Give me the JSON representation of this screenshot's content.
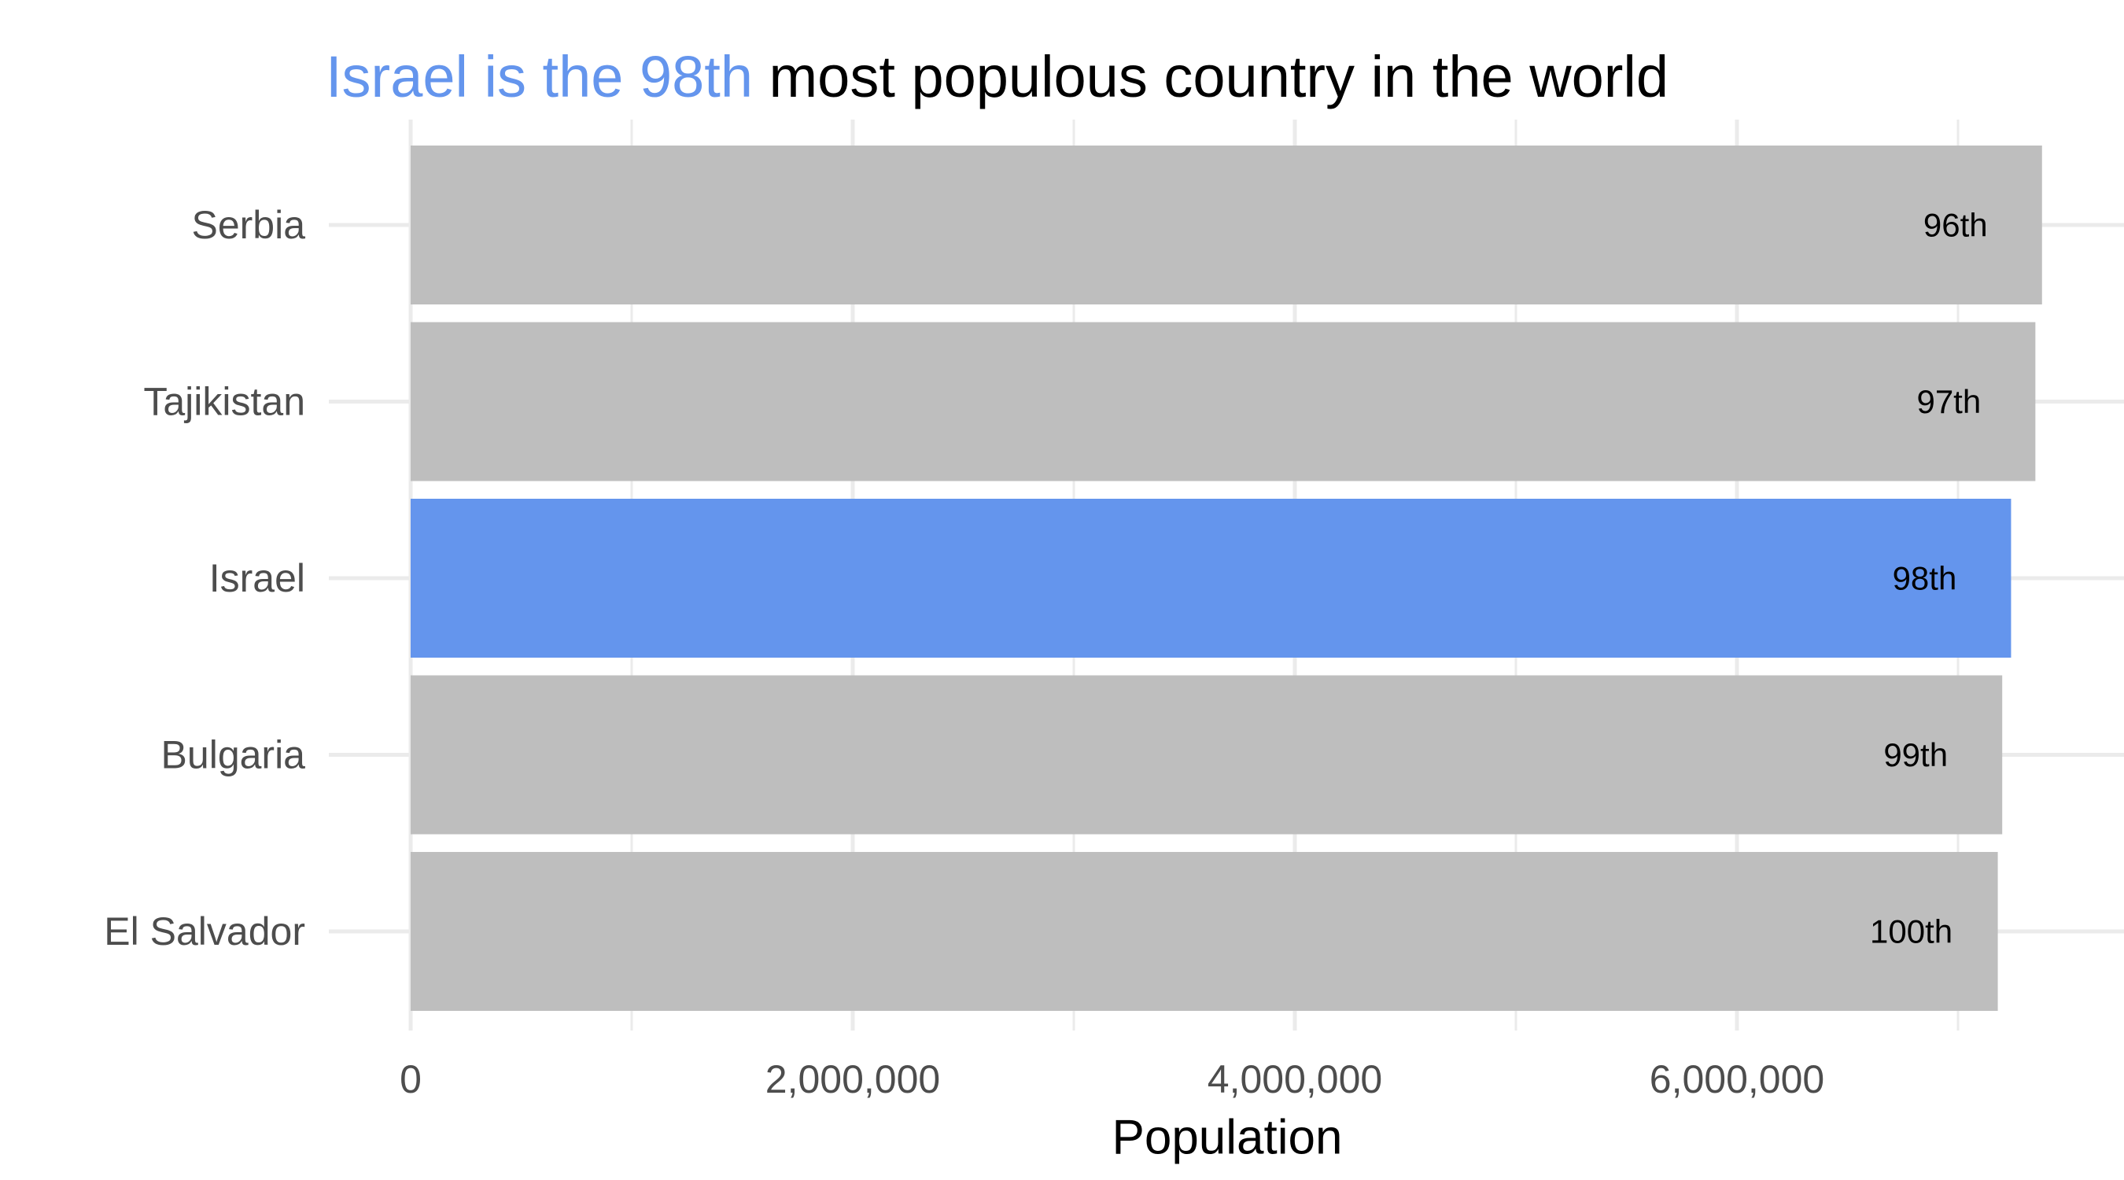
{
  "title": {
    "highlight": "Israel is the 98th",
    "rest": " most populous country in the world"
  },
  "colors": {
    "highlight": "#6495ED",
    "default_bar": "#BEBEBE",
    "grid": "#EBEBEB"
  },
  "chart_data": {
    "type": "bar",
    "orientation": "horizontal",
    "title": "Israel is the 98th most populous country in the world",
    "xlabel": "Population",
    "ylabel": "",
    "categories": [
      "Serbia",
      "Tajikistan",
      "Israel",
      "Bulgaria",
      "El Salvador"
    ],
    "values": [
      7380000,
      7350000,
      7240000,
      7200000,
      7180000
    ],
    "bar_labels": [
      "96th",
      "97th",
      "98th",
      "99th",
      "100th"
    ],
    "highlighted": "Israel",
    "xlim": [
      0,
      7600000
    ],
    "x_ticks": [
      0,
      2000000,
      4000000,
      6000000
    ],
    "x_tick_labels": [
      "0",
      "2,000,000",
      "4,000,000",
      "6,000,000"
    ],
    "grid": true,
    "legend": "none"
  }
}
